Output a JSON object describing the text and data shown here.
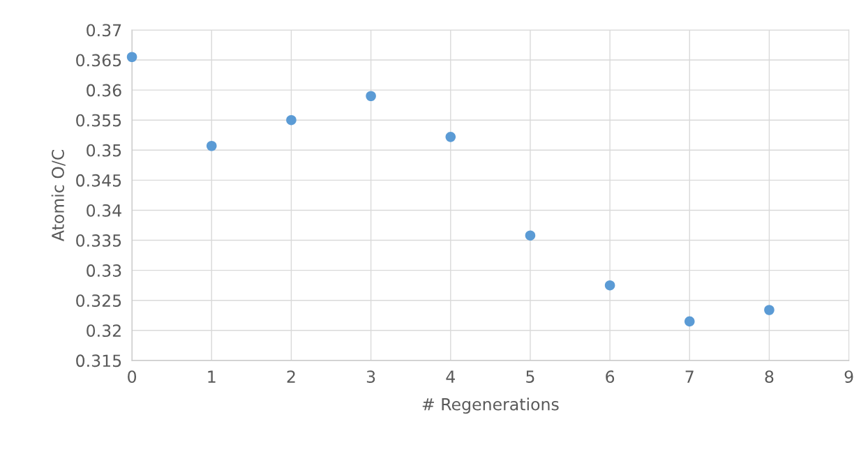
{
  "chart_data": {
    "type": "scatter",
    "xlabel": "# Regenerations",
    "ylabel": "Atomic O/C",
    "x": [
      0,
      1,
      2,
      3,
      4,
      5,
      6,
      7,
      8
    ],
    "series": [
      {
        "color": "#5b9bd5",
        "values": [
          0.3655,
          0.3507,
          0.355,
          0.359,
          0.3522,
          0.3358,
          0.3275,
          0.3215,
          0.3234
        ]
      }
    ],
    "xlim": [
      0,
      9
    ],
    "xticks": [
      0,
      1,
      2,
      3,
      4,
      5,
      6,
      7,
      8,
      9
    ],
    "ylim": [
      0.315,
      0.37
    ],
    "yticks": [
      0.315,
      0.32,
      0.325,
      0.33,
      0.335,
      0.34,
      0.345,
      0.35,
      0.355,
      0.36,
      0.365,
      0.37
    ],
    "grid": true,
    "marker": "circle"
  }
}
